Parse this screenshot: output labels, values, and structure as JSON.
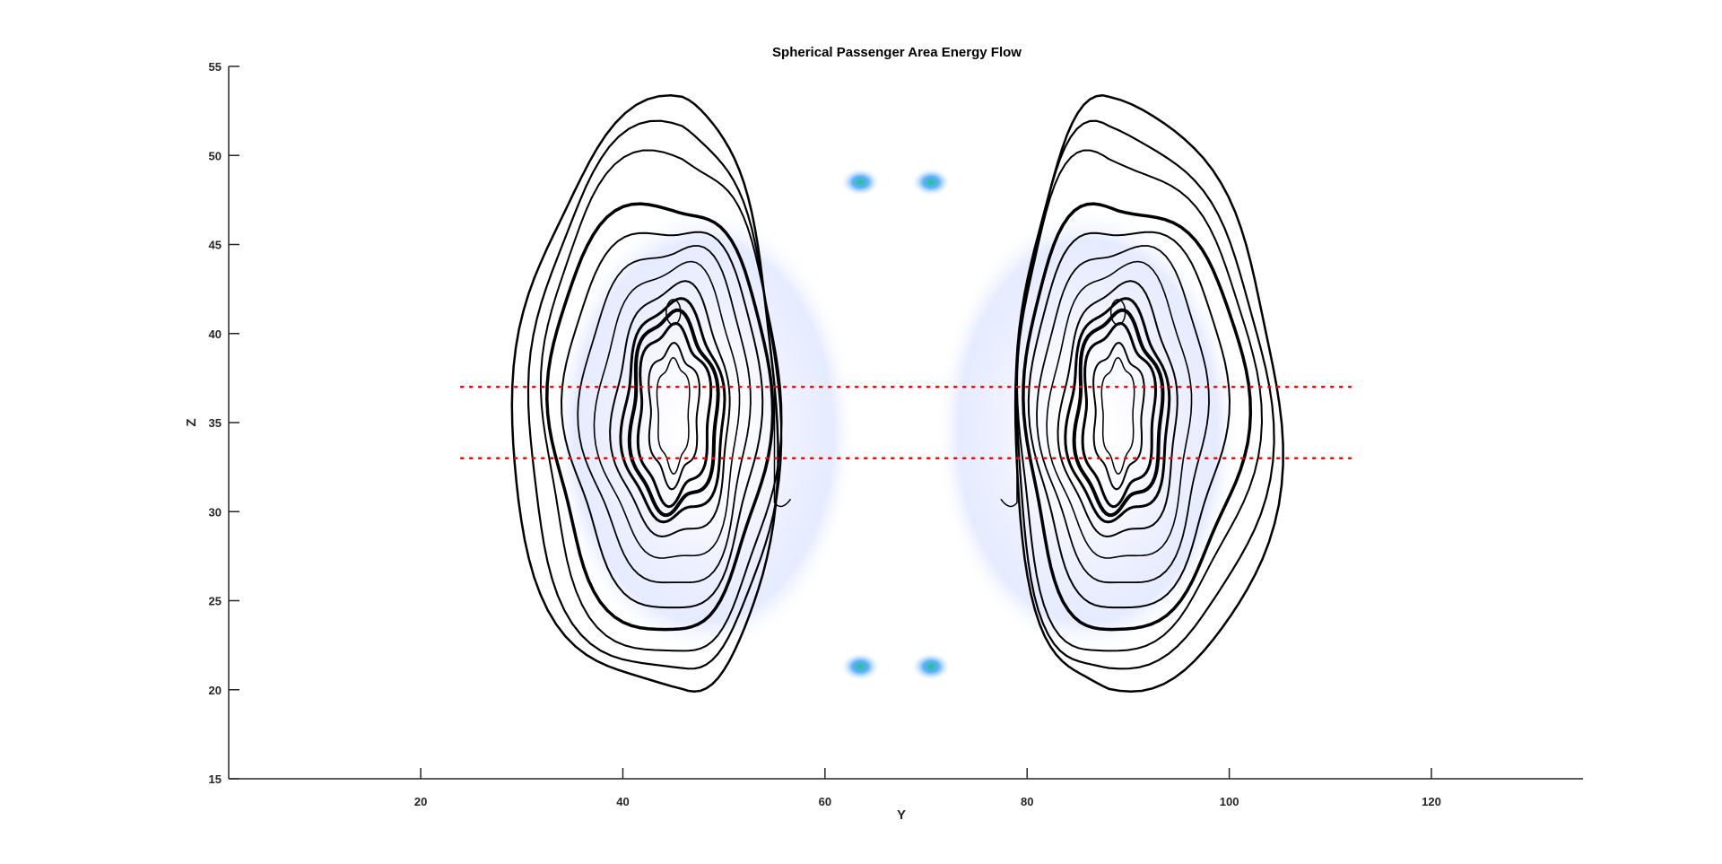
{
  "chart_data": {
    "type": "contour",
    "title": "Spherical Passenger Area Energy Flow",
    "xlabel": "Y",
    "ylabel": "Z",
    "xlim": [
      1,
      135
    ],
    "ylim": [
      15,
      55
    ],
    "xticks": [
      20,
      40,
      60,
      80,
      100,
      120
    ],
    "yticks": [
      15,
      20,
      25,
      30,
      35,
      40,
      45,
      50,
      55
    ],
    "grid": false,
    "colors": {
      "contour": "#000000",
      "reference_line": "#ff0000",
      "fill_light": "#e8ecff",
      "fill_mid": "#7fb0ff",
      "fill_peak": "#20c090"
    },
    "reference_lines": [
      {
        "z": 37,
        "y_from": 24,
        "y_to": 112
      },
      {
        "z": 33,
        "y_from": 24,
        "y_to": 112
      }
    ],
    "lobes": [
      {
        "name": "left",
        "y_center": 46,
        "z_center": 35.5,
        "core_y": 45,
        "core_z": 35.5
      },
      {
        "name": "right",
        "y_center": 88,
        "z_center": 35.5,
        "core_y": 89,
        "core_z": 35.5
      }
    ],
    "peaks": [
      {
        "y": 63.5,
        "z": 48.5
      },
      {
        "y": 63.5,
        "z": 21.3
      },
      {
        "y": 70.5,
        "z": 48.5
      },
      {
        "y": 70.5,
        "z": 21.3
      }
    ]
  }
}
